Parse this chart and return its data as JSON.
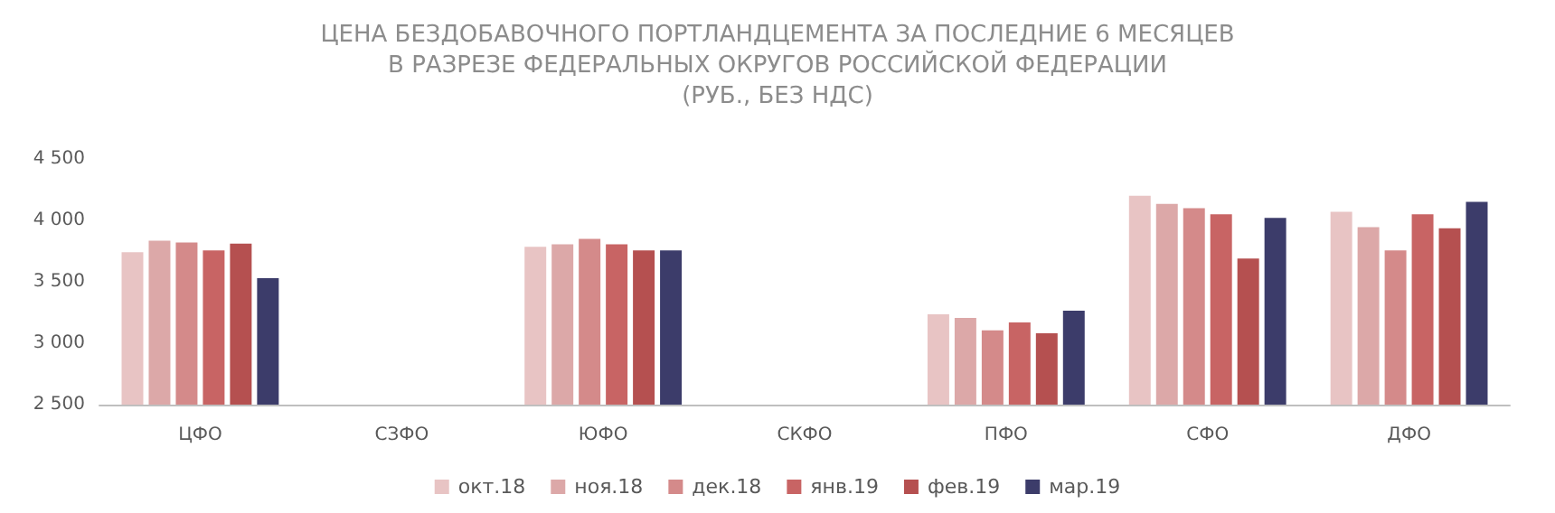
{
  "chart_data": {
    "type": "bar",
    "title": "ЦЕНА БЕЗДОБАВОЧНОГО ПОРТЛАНДЦЕМЕНТА ЗА ПОСЛЕДНИЕ 6 МЕСЯЦЕВ\nВ РАЗРЕЗЕ ФЕДЕРАЛЬНЫХ ОКРУГОВ РОССИЙСКОЙ ФЕДЕРАЦИИ\n(РУБ., БЕЗ НДС)",
    "categories": [
      "ЦФО",
      "СЗФО",
      "ЮФО",
      "СКФО",
      "ПФО",
      "СФО",
      "ДФО"
    ],
    "series": [
      {
        "name": "окт.18",
        "color": "#e8c4c4",
        "values": [
          3740,
          null,
          3785,
          null,
          3235,
          4200,
          4070
        ]
      },
      {
        "name": "ноя.18",
        "color": "#dca8a8",
        "values": [
          3835,
          null,
          3805,
          null,
          3205,
          4135,
          3945
        ]
      },
      {
        "name": "дек.18",
        "color": "#d48a8a",
        "values": [
          3820,
          null,
          3850,
          null,
          3105,
          4100,
          3755
        ]
      },
      {
        "name": "янв.19",
        "color": "#c86464",
        "values": [
          3755,
          null,
          3805,
          null,
          3170,
          4050,
          4050
        ]
      },
      {
        "name": "фев.19",
        "color": "#b55050",
        "values": [
          3810,
          null,
          3755,
          null,
          3080,
          3690,
          3935
        ]
      },
      {
        "name": "мар.19",
        "color": "#3c3c6a",
        "values": [
          3530,
          null,
          3755,
          null,
          3265,
          4020,
          4150
        ]
      }
    ],
    "ylim": [
      2500,
      4500
    ],
    "yticks": [
      {
        "value": 2500,
        "label": "2 500"
      },
      {
        "value": 3000,
        "label": "3 000"
      },
      {
        "value": 3500,
        "label": "3 500"
      },
      {
        "value": 4000,
        "label": "4 000"
      },
      {
        "value": 4500,
        "label": "4 500"
      }
    ],
    "grid": false,
    "legend": "bottom"
  }
}
